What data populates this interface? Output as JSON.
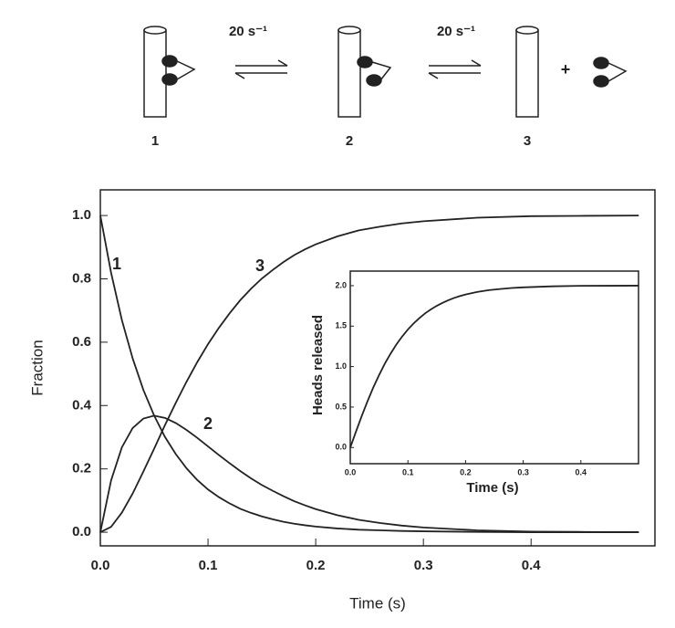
{
  "scheme": {
    "rate_1": "20 s⁻¹",
    "rate_2": "20 s⁻¹",
    "states": [
      "1",
      "2",
      "3"
    ],
    "plus": "+"
  },
  "chart_data": [
    {
      "type": "line",
      "x_label": "Time (s)",
      "y_label": "Fraction",
      "x": [
        0,
        0.01,
        0.02,
        0.03,
        0.04,
        0.05,
        0.06,
        0.07,
        0.08,
        0.09,
        0.1,
        0.11,
        0.12,
        0.13,
        0.14,
        0.15,
        0.16,
        0.17,
        0.18,
        0.19,
        0.2,
        0.22,
        0.24,
        0.26,
        0.28,
        0.3,
        0.35,
        0.4,
        0.45,
        0.5
      ],
      "series": [
        {
          "name": "1",
          "color": "#222222",
          "values": [
            1,
            0.819,
            0.67,
            0.549,
            0.449,
            0.368,
            0.301,
            0.247,
            0.202,
            0.165,
            0.135,
            0.111,
            0.091,
            0.074,
            0.061,
            0.05,
            0.041,
            0.033,
            0.027,
            0.022,
            0.018,
            0.012,
            0.008,
            0.006,
            0.004,
            0.003,
            0.001,
            0,
            0,
            0
          ]
        },
        {
          "name": "2",
          "color": "#222222",
          "values": [
            0,
            0.164,
            0.268,
            0.329,
            0.359,
            0.368,
            0.361,
            0.345,
            0.323,
            0.298,
            0.271,
            0.244,
            0.218,
            0.193,
            0.17,
            0.149,
            0.131,
            0.114,
            0.098,
            0.085,
            0.073,
            0.054,
            0.039,
            0.029,
            0.021,
            0.015,
            0.006,
            0.002,
            0.001,
            0
          ]
        },
        {
          "name": "3",
          "color": "#222222",
          "values": [
            0,
            0.017,
            0.062,
            0.122,
            0.192,
            0.264,
            0.338,
            0.408,
            0.475,
            0.537,
            0.594,
            0.645,
            0.691,
            0.733,
            0.769,
            0.801,
            0.828,
            0.853,
            0.875,
            0.893,
            0.909,
            0.934,
            0.953,
            0.965,
            0.975,
            0.982,
            0.993,
            0.998,
            0.999,
            1
          ]
        }
      ],
      "xlim": [
        0,
        0.515
      ],
      "ylim": [
        -0.043,
        1.081
      ],
      "xticks": [
        {
          "value": 0,
          "label": "0.0"
        },
        0.1,
        0.2,
        0.3,
        0.4
      ],
      "yticks": [
        {
          "value": 0,
          "label": "0.0"
        },
        0.2,
        0.4,
        0.6,
        0.8,
        {
          "value": 1,
          "label": "1.0"
        }
      ]
    },
    {
      "type": "line",
      "x_label": "Time (s)",
      "y_label": "Heads released",
      "color": "#222222",
      "x": [
        0,
        0.01,
        0.02,
        0.03,
        0.04,
        0.05,
        0.06,
        0.07,
        0.08,
        0.09,
        0.1,
        0.11,
        0.12,
        0.13,
        0.14,
        0.15,
        0.16,
        0.17,
        0.18,
        0.19,
        0.2,
        0.22,
        0.24,
        0.26,
        0.28,
        0.3,
        0.35,
        0.4,
        0.45,
        0.5
      ],
      "values": [
        0,
        0.198,
        0.392,
        0.573,
        0.743,
        0.896,
        1.037,
        1.161,
        1.273,
        1.372,
        1.459,
        1.534,
        1.6,
        1.659,
        1.708,
        1.751,
        1.787,
        1.82,
        1.848,
        1.871,
        1.891,
        1.922,
        1.945,
        1.959,
        1.971,
        1.979,
        1.992,
        1.998,
        1.999,
        2
      ],
      "xlim": [
        0,
        0.5
      ],
      "ylim": [
        -0.2,
        2.18
      ],
      "xticks": [
        {
          "value": 0,
          "label": "0.0"
        },
        0.1,
        0.2,
        0.3,
        0.4
      ],
      "yticks": [
        {
          "value": 0,
          "label": "0.0"
        },
        0.5,
        {
          "value": 1,
          "label": "1.0"
        },
        1.5,
        {
          "value": 2,
          "label": "2.0"
        }
      ]
    }
  ]
}
